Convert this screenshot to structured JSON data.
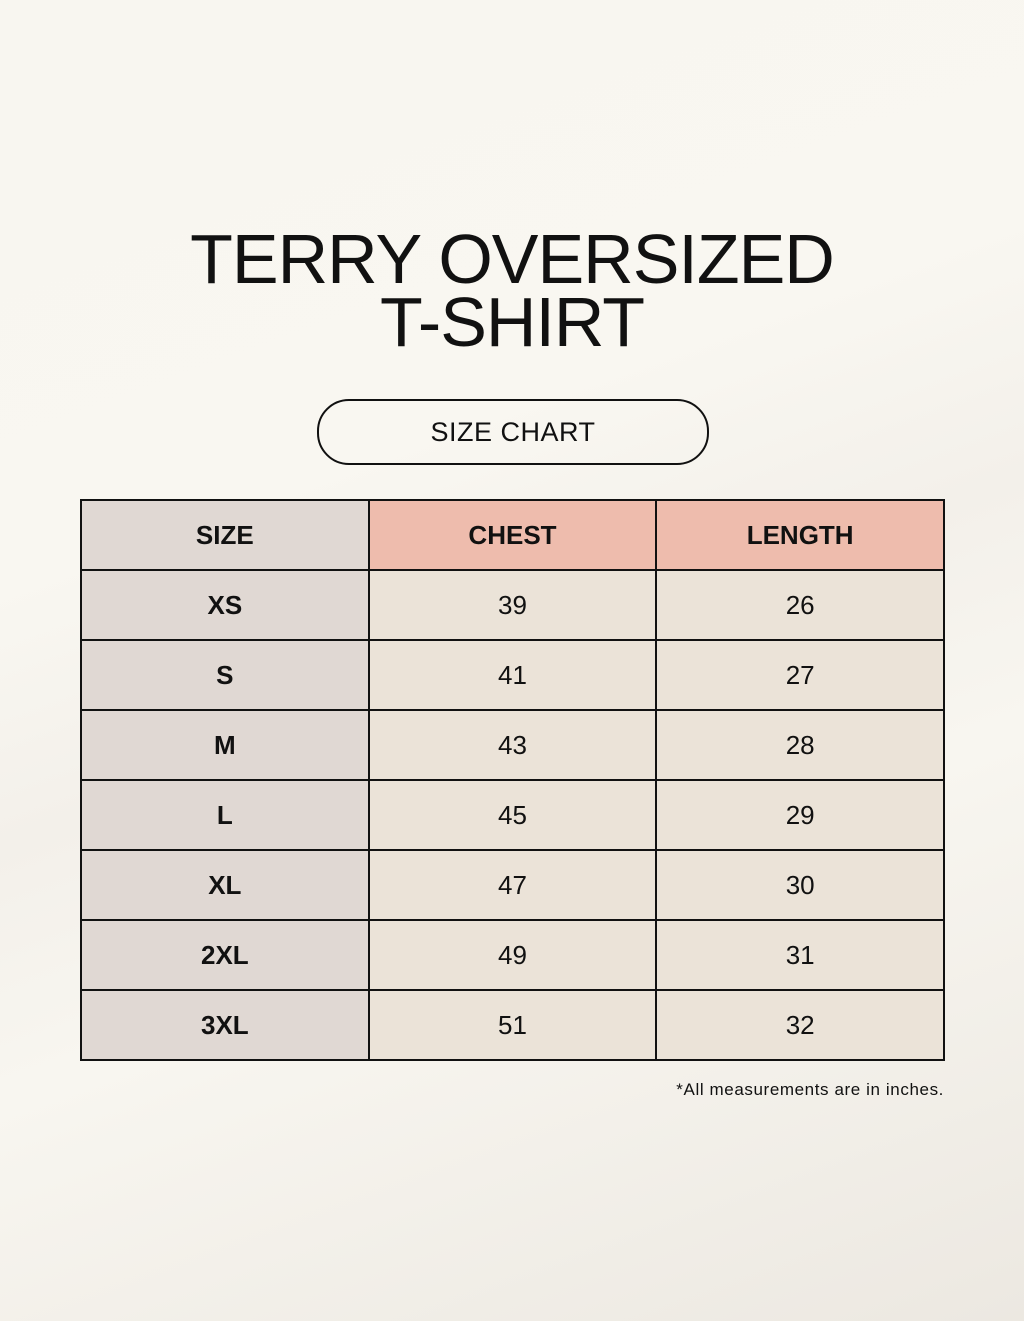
{
  "title": {
    "line1": "TERRY OVERSIZED",
    "line2": "T-SHIRT"
  },
  "subtitle": "SIZE CHART",
  "table": {
    "headers": [
      "SIZE",
      "CHEST",
      "LENGTH"
    ],
    "rows": [
      [
        "XS",
        "39",
        "26"
      ],
      [
        "S",
        "41",
        "27"
      ],
      [
        "M",
        "43",
        "28"
      ],
      [
        "L",
        "45",
        "29"
      ],
      [
        "XL",
        "47",
        "30"
      ],
      [
        "2XL",
        "49",
        "31"
      ],
      [
        "3XL",
        "51",
        "32"
      ]
    ]
  },
  "note": "*All measurements are in inches.",
  "colors": {
    "header_accent": "#eebcad",
    "size_column": "#e0d8d3",
    "value_cells": "#ebe3d8"
  }
}
